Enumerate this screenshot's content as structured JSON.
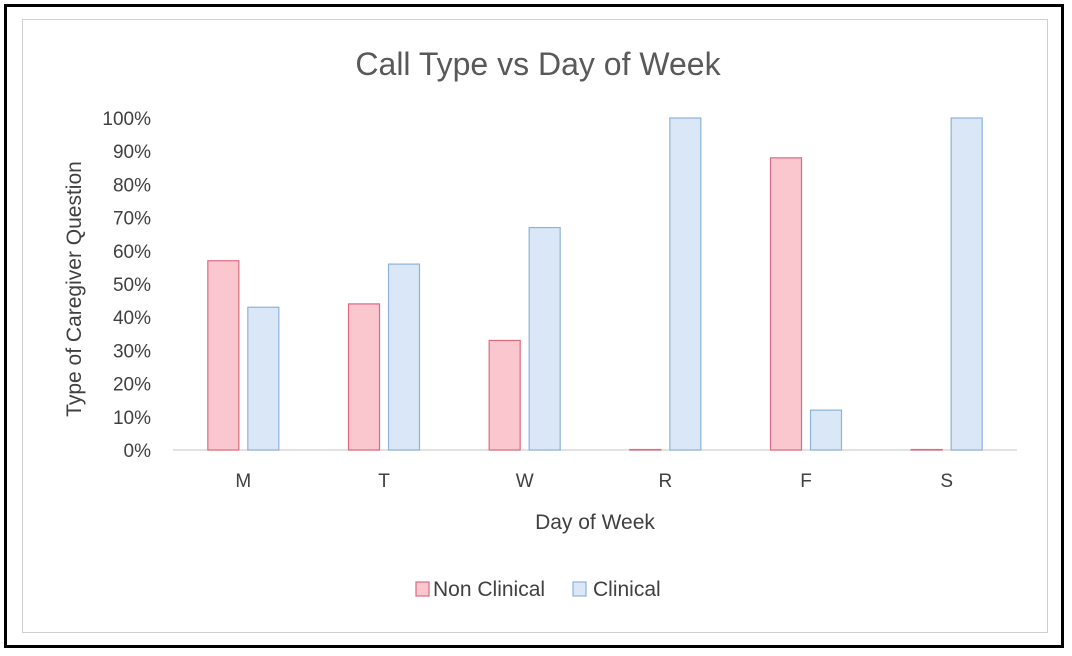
{
  "chart_data": {
    "type": "bar",
    "title": "Call Type vs Day of Week",
    "xlabel": "Day of Week",
    "ylabel": "Type of Caregiver Question",
    "categories": [
      "M",
      "T",
      "W",
      "R",
      "F",
      "S"
    ],
    "ylim": [
      0,
      100
    ],
    "yticks": [
      "0%",
      "10%",
      "20%",
      "30%",
      "40%",
      "50%",
      "60%",
      "70%",
      "80%",
      "90%",
      "100%"
    ],
    "grid": false,
    "legend_position": "bottom",
    "series": [
      {
        "name": "Non Clinical",
        "values": [
          57,
          44,
          33,
          0,
          88,
          0
        ],
        "fill": "#fbc7cf",
        "stroke": "#dc6a80"
      },
      {
        "name": "Clinical",
        "values": [
          43,
          56,
          67,
          100,
          12,
          100
        ],
        "fill": "#dae7f6",
        "stroke": "#8eb3d9"
      }
    ]
  }
}
